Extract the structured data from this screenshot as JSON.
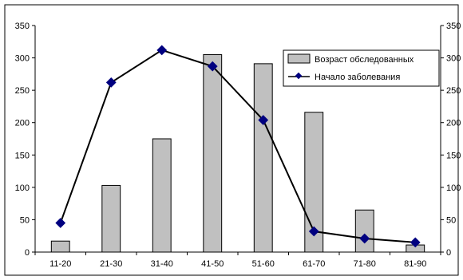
{
  "chart_data": {
    "type": "bar",
    "categories": [
      "11-20",
      "21-30",
      "31-40",
      "41-50",
      "51-60",
      "61-70",
      "71-80",
      "81-90"
    ],
    "series": [
      {
        "name": "Возраст обследованных",
        "kind": "bar",
        "color": "#c0c0c0",
        "values": [
          17,
          103,
          175,
          305,
          291,
          216,
          65,
          11
        ]
      },
      {
        "name": "Начало заболевания",
        "kind": "line",
        "color": "#000000",
        "marker_color": "#000080",
        "values": [
          45,
          262,
          312,
          287,
          204,
          32,
          21,
          15
        ]
      }
    ],
    "title": "",
    "xlabel": "",
    "ylabel": "",
    "ylim": [
      0,
      350
    ],
    "yticks": [
      0,
      50,
      100,
      150,
      200,
      250,
      300,
      350
    ],
    "ytick_labels": [
      "0",
      "50",
      "100",
      "150",
      "200",
      "250",
      "300",
      "350"
    ],
    "y2lim": [
      0,
      350
    ],
    "y2tick_labels": [
      "0",
      "50",
      "100",
      "150",
      "200",
      "250",
      "300",
      "350"
    ],
    "grid": false,
    "legend_position": "top-right"
  }
}
